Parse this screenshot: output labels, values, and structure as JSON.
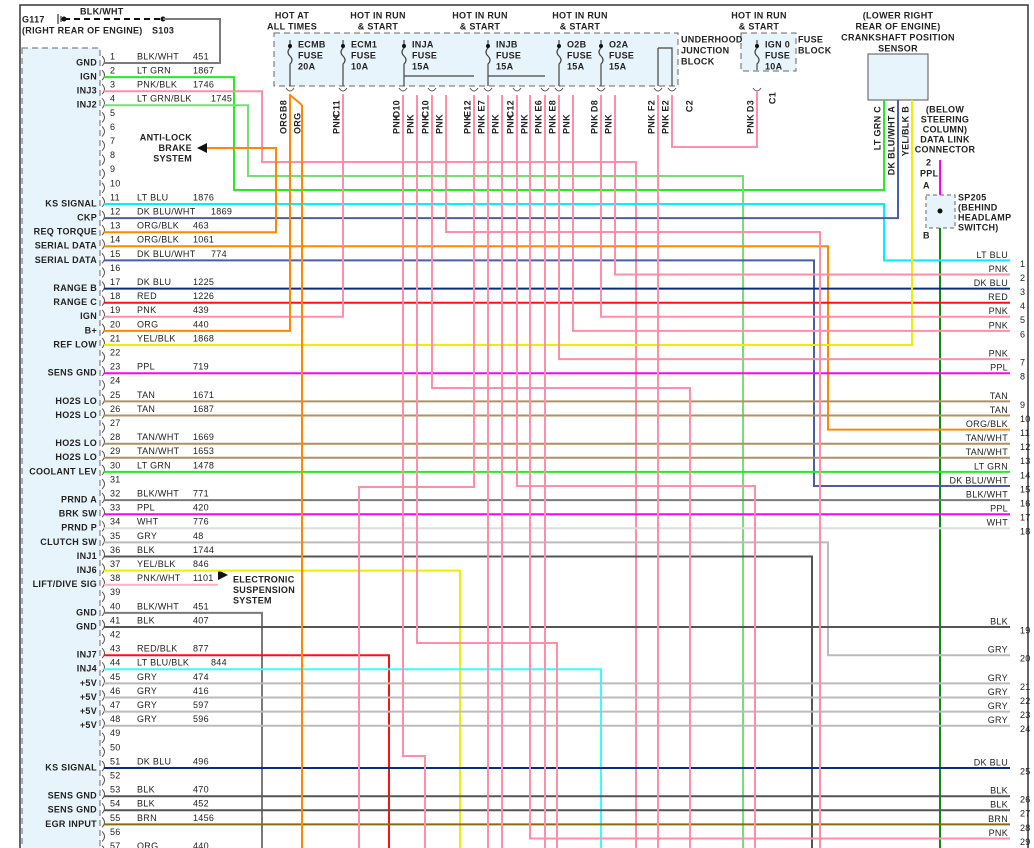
{
  "ground": {
    "id": "G117",
    "location": "(RIGHT REAR OF ENGINE)",
    "wire": "BLK/WHT",
    "splice": "S103"
  },
  "fuse_headers": [
    "HOT AT",
    "ALL TIMES",
    "HOT IN RUN",
    "& START",
    "HOT IN RUN",
    "& START",
    "HOT IN RUN",
    "& START",
    "HOT IN RUN",
    "& START"
  ],
  "fuses": [
    {
      "name": "ECMB",
      "word": "FUSE",
      "rating": "20A"
    },
    {
      "name": "ECM1",
      "word": "FUSE",
      "rating": "10A"
    },
    {
      "name": "INJA",
      "word": "FUSE",
      "rating": "15A"
    },
    {
      "name": "INJB",
      "word": "FUSE",
      "rating": "15A"
    },
    {
      "name": "O2B",
      "word": "FUSE",
      "rating": "15A"
    },
    {
      "name": "O2A",
      "word": "FUSE",
      "rating": "15A"
    },
    {
      "name": "IGN 0",
      "word": "FUSE",
      "rating": "10A"
    }
  ],
  "junction_block_label": [
    "UNDERHOOD",
    "JUNCTION",
    "BLOCK"
  ],
  "fuse_block_label": [
    "FUSE",
    "BLOCK"
  ],
  "fuse_connectors": [
    {
      "id": "B8",
      "wires": [
        "ORG",
        "ORG"
      ]
    },
    {
      "id": "C11",
      "wires": [
        "PNK"
      ]
    },
    {
      "id": "D10",
      "wires": [
        "PNK",
        "PNK"
      ]
    },
    {
      "id": "C10",
      "wires": [
        "PNK",
        "PNK"
      ]
    },
    {
      "id": "E12",
      "wires": [
        "PNK"
      ]
    },
    {
      "id": "E7",
      "wires": [
        "PNK",
        "PNK"
      ]
    },
    {
      "id": "C12",
      "wires": [
        "PNK",
        "PNK"
      ]
    },
    {
      "id": "E6",
      "wires": [
        "PNK"
      ]
    },
    {
      "id": "E8",
      "wires": [
        "PNK",
        "PNK"
      ]
    },
    {
      "id": "D8",
      "wires": [
        "PNK",
        "PNK"
      ]
    },
    {
      "id": "F2",
      "wires": [
        "PNK"
      ]
    },
    {
      "id": "E2",
      "wires": [
        "PNK"
      ]
    },
    {
      "id": "D3",
      "wires": [
        "PNK"
      ]
    }
  ],
  "connector_ids": [
    "C2",
    "C1"
  ],
  "crank_sensor": {
    "label": [
      "(LOWER RIGHT",
      "REAR OF ENGINE)",
      "CRANKSHAFT POSITION",
      "SENSOR"
    ],
    "pins": [
      "LT GRN C",
      "DK BLU/WHT A",
      "YEL/BLK B"
    ]
  },
  "dlc": {
    "label": [
      "(BELOW",
      "STEERING",
      "COLUMN)",
      "DATA LINK",
      "CONNECTOR"
    ],
    "pin": "2",
    "wire": "PPL",
    "terminal_a": "A",
    "terminal_b": "B"
  },
  "splice": {
    "label": [
      "SP205",
      "(BEHIND",
      "HEADLAMP",
      "SWITCH)"
    ]
  },
  "abs": [
    "ANTI-LOCK",
    "BRAKE",
    "SYSTEM"
  ],
  "suspension": [
    "ELECTRONIC",
    "SUSPENSION",
    "SYSTEM"
  ],
  "wire_colors": {
    "BLK/WHT": "#7a7a7a",
    "LT GRN": "#22ee22",
    "PNK/BLK": "#ff8fa8",
    "LT GRN/BLK": "#77dd77",
    "LT BLU": "#00f0ff",
    "DK BLU/WHT": "#4a5fa8",
    "ORG/BLK": "#ff8800",
    "DK BLU": "#0a2a8a",
    "RED": "#ff1010",
    "PNK": "#ff8fa8",
    "ORG": "#ff8800",
    "YEL/BLK": "#eeee00",
    "PPL": "#ff00ff",
    "TAN": "#b09060",
    "TAN/WHT": "#b09060",
    "WHT": "#dddddd",
    "GRY": "#bbbbbb",
    "BLK": "#555555",
    "RED/BLK": "#ff1010",
    "LT BLU/BLK": "#33ffff",
    "BRN": "#8b6914",
    "PNK/WHT": "#ffb0c0",
    "DK GRN": "#118811"
  },
  "pcm_pins": [
    {
      "pin": "1",
      "label": "GND",
      "wire": "BLK/WHT",
      "circuit": "451"
    },
    {
      "pin": "2",
      "label": "IGN",
      "wire": "LT GRN",
      "circuit": "1867"
    },
    {
      "pin": "3",
      "label": "INJ3",
      "wire": "PNK/BLK",
      "circuit": "1746"
    },
    {
      "pin": "4",
      "label": "INJ2",
      "wire": "LT GRN/BLK",
      "circuit": "1745"
    },
    {
      "pin": "5"
    },
    {
      "pin": "6"
    },
    {
      "pin": "7"
    },
    {
      "pin": "8"
    },
    {
      "pin": "9"
    },
    {
      "pin": "10"
    },
    {
      "pin": "11",
      "label": "KS SIGNAL",
      "wire": "LT BLU",
      "circuit": "1876"
    },
    {
      "pin": "12",
      "label": "CKP",
      "wire": "DK BLU/WHT",
      "circuit": "1869"
    },
    {
      "pin": "13",
      "label": "REQ TORQUE",
      "wire": "ORG/BLK",
      "circuit": "463"
    },
    {
      "pin": "14",
      "label": "SERIAL DATA",
      "wire": "ORG/BLK",
      "circuit": "1061"
    },
    {
      "pin": "15",
      "label": "SERIAL DATA",
      "wire": "DK BLU/WHT",
      "circuit": "774"
    },
    {
      "pin": "16"
    },
    {
      "pin": "17",
      "label": "RANGE B",
      "wire": "DK BLU",
      "circuit": "1225"
    },
    {
      "pin": "18",
      "label": "RANGE C",
      "wire": "RED",
      "circuit": "1226"
    },
    {
      "pin": "19",
      "label": "IGN",
      "wire": "PNK",
      "circuit": "439"
    },
    {
      "pin": "20",
      "label": "B+",
      "wire": "ORG",
      "circuit": "440"
    },
    {
      "pin": "21",
      "label": "REF LOW",
      "wire": "YEL/BLK",
      "circuit": "1868"
    },
    {
      "pin": "22"
    },
    {
      "pin": "23",
      "label": "SENS GND",
      "wire": "PPL",
      "circuit": "719"
    },
    {
      "pin": "24"
    },
    {
      "pin": "25",
      "label": "HO2S LO",
      "wire": "TAN",
      "circuit": "1671"
    },
    {
      "pin": "26",
      "label": "HO2S LO",
      "wire": "TAN",
      "circuit": "1687"
    },
    {
      "pin": "27"
    },
    {
      "pin": "28",
      "label": "HO2S LO",
      "wire": "TAN/WHT",
      "circuit": "1669"
    },
    {
      "pin": "29",
      "label": "HO2S LO",
      "wire": "TAN/WHT",
      "circuit": "1653"
    },
    {
      "pin": "30",
      "label": "COOLANT LEV",
      "wire": "LT GRN",
      "circuit": "1478"
    },
    {
      "pin": "31"
    },
    {
      "pin": "32",
      "label": "PRND A",
      "wire": "BLK/WHT",
      "circuit": "771"
    },
    {
      "pin": "33",
      "label": "BRK SW",
      "wire": "PPL",
      "circuit": "420"
    },
    {
      "pin": "34",
      "label": "PRND P",
      "wire": "WHT",
      "circuit": "776"
    },
    {
      "pin": "35",
      "label": "CLUTCH SW",
      "wire": "GRY",
      "circuit": "48"
    },
    {
      "pin": "36",
      "label": "INJ1",
      "wire": "BLK",
      "circuit": "1744"
    },
    {
      "pin": "37",
      "label": "INJ6",
      "wire": "YEL/BLK",
      "circuit": "846"
    },
    {
      "pin": "38",
      "label": "LIFT/DIVE SIG",
      "wire": "PNK/WHT",
      "circuit": "1101"
    },
    {
      "pin": "39"
    },
    {
      "pin": "40",
      "label": "GND",
      "wire": "BLK/WHT",
      "circuit": "451"
    },
    {
      "pin": "41",
      "label": "GND",
      "wire": "BLK",
      "circuit": "407"
    },
    {
      "pin": "42"
    },
    {
      "pin": "43",
      "label": "INJ7",
      "wire": "RED/BLK",
      "circuit": "877"
    },
    {
      "pin": "44",
      "label": "INJ4",
      "wire": "LT BLU/BLK",
      "circuit": "844"
    },
    {
      "pin": "45",
      "label": "+5V",
      "wire": "GRY",
      "circuit": "474"
    },
    {
      "pin": "46",
      "label": "+5V",
      "wire": "GRY",
      "circuit": "416"
    },
    {
      "pin": "47",
      "label": "+5V",
      "wire": "GRY",
      "circuit": "597"
    },
    {
      "pin": "48",
      "label": "+5V",
      "wire": "GRY",
      "circuit": "596"
    },
    {
      "pin": "49"
    },
    {
      "pin": "50"
    },
    {
      "pin": "51",
      "label": "KS SIGNAL",
      "wire": "DK BLU",
      "circuit": "496"
    },
    {
      "pin": "52"
    },
    {
      "pin": "53",
      "label": "SENS GND",
      "wire": "BLK",
      "circuit": "470"
    },
    {
      "pin": "54",
      "label": "SENS GND",
      "wire": "BLK",
      "circuit": "452"
    },
    {
      "pin": "55",
      "label": "EGR INPUT",
      "wire": "BRN",
      "circuit": "1456"
    },
    {
      "pin": "56"
    },
    {
      "pin": "57",
      "wire": "ORG",
      "circuit": "440"
    }
  ],
  "right_pins": [
    {
      "pin": "1",
      "wire": "LT BLU"
    },
    {
      "pin": "2",
      "wire": "PNK"
    },
    {
      "pin": "3",
      "wire": "DK BLU"
    },
    {
      "pin": "4",
      "wire": "RED"
    },
    {
      "pin": "5",
      "wire": "PNK"
    },
    {
      "pin": "6",
      "wire": "PNK"
    },
    {
      "pin": "7",
      "wire": "PNK"
    },
    {
      "pin": "8",
      "wire": "PPL"
    },
    {
      "pin": "9",
      "wire": "TAN"
    },
    {
      "pin": "10",
      "wire": "TAN"
    },
    {
      "pin": "11",
      "wire": "ORG/BLK"
    },
    {
      "pin": "12",
      "wire": "TAN/WHT"
    },
    {
      "pin": "13",
      "wire": "TAN/WHT"
    },
    {
      "pin": "14",
      "wire": "LT GRN"
    },
    {
      "pin": "15",
      "wire": "DK BLU/WHT"
    },
    {
      "pin": "16",
      "wire": "BLK/WHT"
    },
    {
      "pin": "17",
      "wire": "PPL"
    },
    {
      "pin": "18",
      "wire": "WHT"
    },
    {
      "pin": "19",
      "wire": "BLK"
    },
    {
      "pin": "20",
      "wire": "GRY"
    },
    {
      "pin": "21",
      "wire": "GRY"
    },
    {
      "pin": "22",
      "wire": "GRY"
    },
    {
      "pin": "23",
      "wire": "GRY"
    },
    {
      "pin": "24",
      "wire": "GRY"
    },
    {
      "pin": "25",
      "wire": "DK BLU"
    },
    {
      "pin": "26",
      "wire": "BLK"
    },
    {
      "pin": "27",
      "wire": "BLK"
    },
    {
      "pin": "28",
      "wire": "BRN"
    },
    {
      "pin": "29",
      "wire": "PNK"
    }
  ]
}
